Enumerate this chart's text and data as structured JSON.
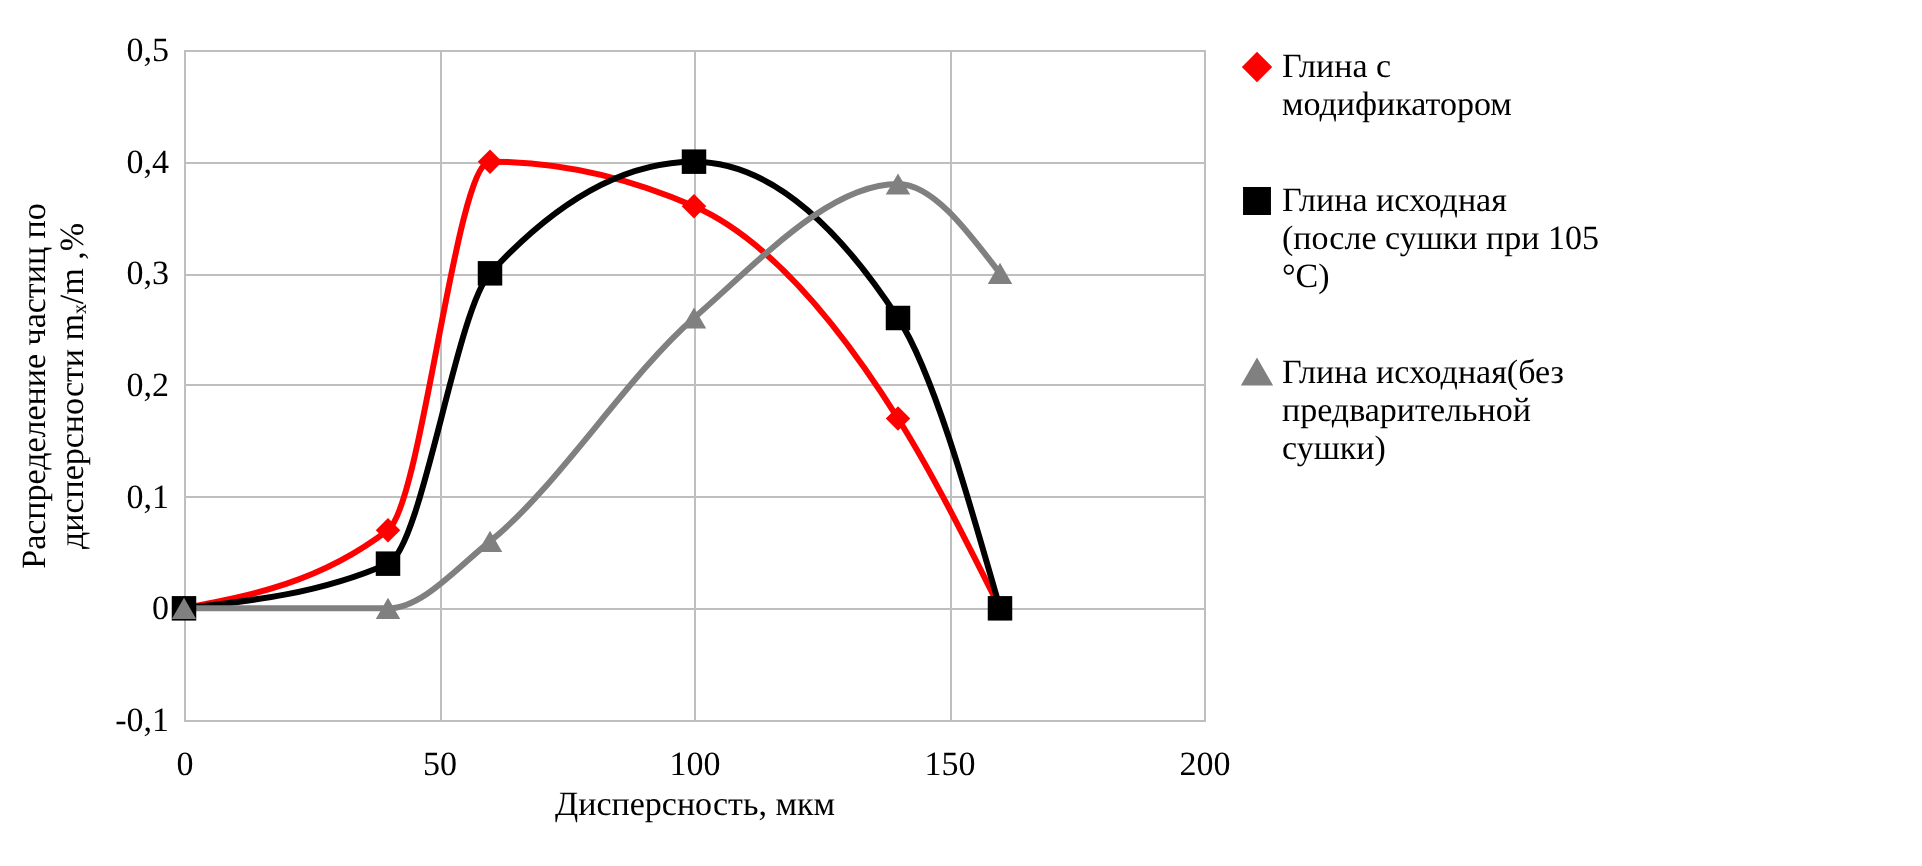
{
  "chart_data": {
    "type": "line",
    "xlabel": "Дисперсность, мкм",
    "ylabel": "Распределение частиц по дисперсности mₓ/m ,%",
    "x": [
      0,
      40,
      60,
      100,
      140,
      160
    ],
    "series": [
      {
        "name": "Глина с модификатором",
        "color": "#ff0000",
        "marker": "diamond",
        "values": [
          0,
          0.07,
          0.4,
          0.36,
          0.17,
          0
        ]
      },
      {
        "name": "Глина исходная (после сушки при 105 °C)",
        "color": "#000000",
        "marker": "square",
        "values": [
          0,
          0.04,
          0.3,
          0.4,
          0.26,
          0
        ]
      },
      {
        "name": "Глина исходная(без предварительной сушки)",
        "color": "#808080",
        "marker": "triangle",
        "values": [
          0,
          0,
          0.06,
          0.26,
          0.38,
          0.3
        ]
      }
    ],
    "xlim": [
      0,
      200
    ],
    "xticks": [
      0,
      50,
      100,
      150,
      200
    ],
    "ylim": [
      -0.1,
      0.5
    ],
    "yticks": [
      {
        "value": -0.1,
        "label": "-0,1"
      },
      {
        "value": 0,
        "label": "0"
      },
      {
        "value": 0.1,
        "label": "0,1"
      },
      {
        "value": 0.2,
        "label": "0,2"
      },
      {
        "value": 0.3,
        "label": "0,3"
      },
      {
        "value": 0.4,
        "label": "0,4"
      },
      {
        "value": 0.5,
        "label": "0,5"
      }
    ],
    "grid": true,
    "legend": "right",
    "line_style": "solid"
  }
}
